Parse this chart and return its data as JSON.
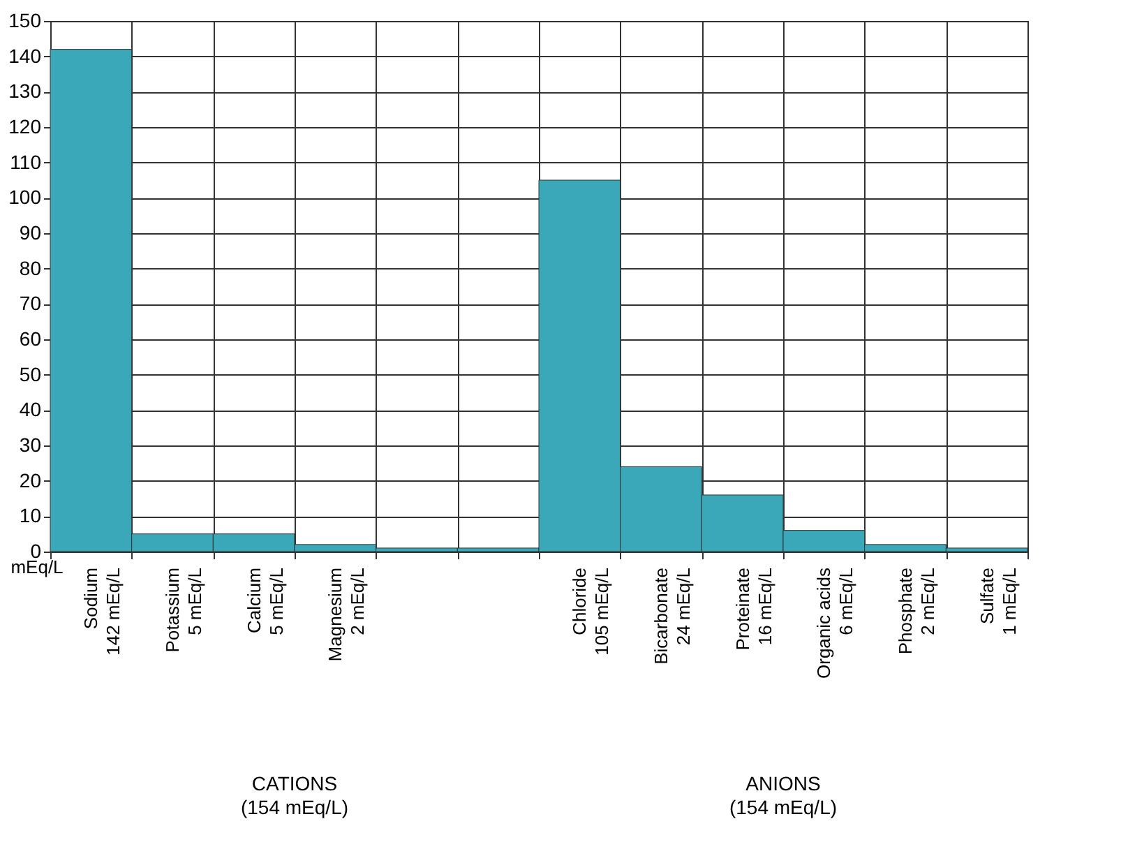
{
  "chart_data": {
    "type": "bar",
    "ylabel": "mEq/L",
    "categories": [
      "Sodium\n142 mEq/L",
      "Potassium\n5 mEq/L",
      "Calcium\n5 mEq/L",
      "Magnesium\n2 mEq/L",
      null,
      null,
      "Chloride\n105 mEq/L",
      "Bicarbonate\n24 mEq/L",
      "Proteinate\n16 mEq/L",
      "Organic acids\n6 mEq/L",
      "Phosphate\n2 mEq/L",
      "Sulfate\n1 mEq/L"
    ],
    "values": [
      142,
      5,
      5,
      2,
      1,
      1,
      105,
      24,
      16,
      6,
      2,
      1
    ],
    "color": "#3aa8b8",
    "ylim": [
      0,
      150
    ],
    "yticks": [
      0,
      10,
      20,
      30,
      40,
      50,
      60,
      70,
      80,
      90,
      100,
      110,
      120,
      130,
      140,
      150
    ],
    "grid": true,
    "annotations": [
      "CATIONS\n(154 mEq/L)",
      "ANIONS\n(154 mEq/L)"
    ]
  }
}
